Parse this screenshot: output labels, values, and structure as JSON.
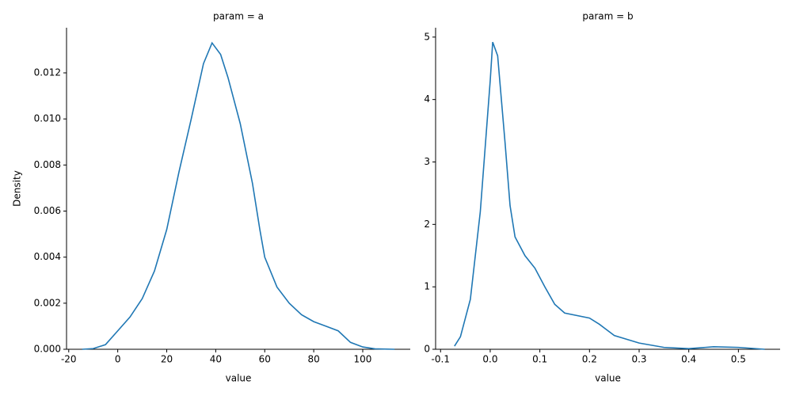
{
  "chart_data": [
    {
      "type": "line",
      "title": "param = a",
      "x_label": "value",
      "y_label": "Density",
      "x": [
        -14.5,
        -10,
        -5,
        0,
        5,
        10,
        15,
        20,
        25,
        30,
        35,
        38.5,
        42,
        45,
        50,
        55,
        58,
        60,
        65,
        70,
        75,
        80,
        85,
        90,
        95,
        100,
        105,
        113
      ],
      "series": [
        {
          "name": "a",
          "color": "#1f77b4",
          "values": [
            0,
            3e-05,
            0.0002,
            0.0008,
            0.0014,
            0.0022,
            0.0034,
            0.0052,
            0.0077,
            0.01,
            0.0124,
            0.0133,
            0.0128,
            0.0118,
            0.0098,
            0.0072,
            0.0052,
            0.004,
            0.0027,
            0.002,
            0.0015,
            0.0012,
            0.001,
            0.0008,
            0.0003,
            0.0001,
            2e-05,
            0
          ]
        }
      ],
      "xlim": [
        -20.9,
        119.4
      ],
      "ylim": [
        0,
        0.01396
      ],
      "xticks": [
        -20,
        0,
        20,
        40,
        60,
        80,
        100
      ],
      "yticks": [
        {
          "value": 0,
          "label": "0.000"
        },
        {
          "value": 0.002,
          "label": "0.002"
        },
        {
          "value": 0.004,
          "label": "0.004"
        },
        {
          "value": 0.006,
          "label": "0.006"
        },
        {
          "value": 0.008,
          "label": "0.008"
        },
        {
          "value": 0.01,
          "label": "0.010"
        },
        {
          "value": 0.012,
          "label": "0.012"
        }
      ]
    },
    {
      "type": "line",
      "title": "param = b",
      "x_label": "value",
      "x": [
        -0.072,
        -0.06,
        -0.04,
        -0.02,
        0,
        0.005,
        0.015,
        0.03,
        0.04,
        0.05,
        0.07,
        0.09,
        0.11,
        0.13,
        0.15,
        0.2,
        0.22,
        0.25,
        0.3,
        0.35,
        0.4,
        0.45,
        0.5,
        0.553
      ],
      "series": [
        {
          "name": "b",
          "color": "#1f77b4",
          "values": [
            0.05,
            0.2,
            0.8,
            2.2,
            4.3,
            4.92,
            4.7,
            3.3,
            2.3,
            1.8,
            1.5,
            1.3,
            1.0,
            0.72,
            0.58,
            0.5,
            0.4,
            0.22,
            0.1,
            0.03,
            0.01,
            0.04,
            0.03,
            0
          ]
        }
      ],
      "xlim": [
        -0.11,
        0.584
      ],
      "ylim": [
        0,
        5.15
      ],
      "xticks": [
        -0.1,
        {
          "value": 0,
          "label": "0.0"
        },
        0.1,
        0.2,
        0.3,
        0.4,
        0.5
      ],
      "yticks": [
        0,
        1,
        2,
        3,
        4,
        5
      ]
    }
  ]
}
